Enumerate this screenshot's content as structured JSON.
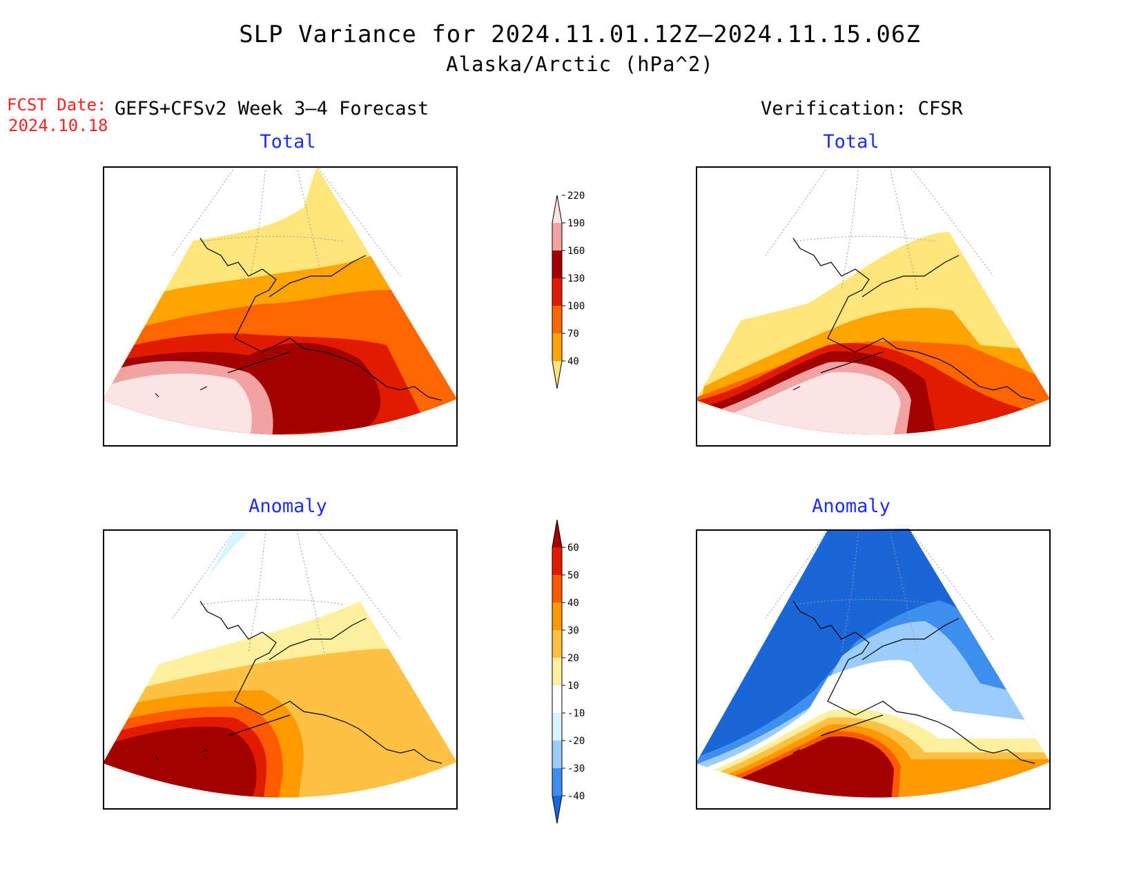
{
  "title": {
    "line1": "SLP Variance for 2024.11.01.12Z–2024.11.15.06Z",
    "line2": "Alaska/Arctic (hPa^2)"
  },
  "fcst": {
    "label": "FCST Date:",
    "date": "2024.10.18"
  },
  "columns": {
    "forecast": "GEFS+CFSv2 Week 3–4 Forecast",
    "verification": "Verification: CFSR"
  },
  "panels": {
    "fc_total": "Total",
    "vf_total": "Total",
    "fc_anomaly": "Anomaly",
    "vf_anomaly": "Anomaly"
  },
  "colorbars": {
    "total": {
      "ticks": [
        "40",
        "70",
        "100",
        "130",
        "160",
        "190",
        "220"
      ],
      "colors": [
        "#ffe57a",
        "#ffa400",
        "#ff6600",
        "#e21b00",
        "#a30000",
        "#f2a2a2",
        "#fde4e4"
      ]
    },
    "anomaly": {
      "ticks": [
        "-40",
        "-30",
        "-20",
        "-10",
        "10",
        "20",
        "30",
        "40",
        "50",
        "60"
      ],
      "colors": [
        "#1a66d9",
        "#3e8ef0",
        "#9ccdfa",
        "#d6f6ff",
        "#ffffff",
        "#fff0a0",
        "#ffc142",
        "#ff9900",
        "#ff5a00",
        "#e21b00",
        "#a30000"
      ]
    }
  }
}
